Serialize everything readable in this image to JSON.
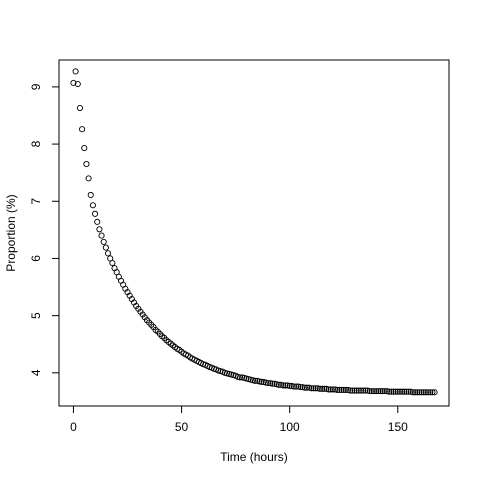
{
  "chart_data": {
    "type": "scatter",
    "x_label": "Time (hours)",
    "y_label": "Proportion (%)",
    "x": [
      0,
      1,
      2,
      3,
      4,
      5,
      6,
      7,
      8,
      9,
      10,
      11,
      12,
      13,
      14,
      15,
      16,
      17,
      18,
      19,
      20,
      21,
      22,
      23,
      24,
      25,
      26,
      27,
      28,
      29,
      30,
      31,
      32,
      33,
      34,
      35,
      36,
      37,
      38,
      39,
      40,
      41,
      42,
      43,
      44,
      45,
      46,
      47,
      48,
      49,
      50,
      51,
      52,
      53,
      54,
      55,
      56,
      57,
      58,
      59,
      60,
      61,
      62,
      63,
      64,
      65,
      66,
      67,
      68,
      69,
      70,
      71,
      72,
      73,
      74,
      75,
      76,
      77,
      78,
      79,
      80,
      81,
      82,
      83,
      84,
      85,
      86,
      87,
      88,
      89,
      90,
      91,
      92,
      93,
      94,
      95,
      96,
      97,
      98,
      99,
      100,
      101,
      102,
      103,
      104,
      105,
      106,
      107,
      108,
      109,
      110,
      111,
      112,
      113,
      114,
      115,
      116,
      117,
      118,
      119,
      120,
      121,
      122,
      123,
      124,
      125,
      126,
      127,
      128,
      129,
      130,
      131,
      132,
      133,
      134,
      135,
      136,
      137,
      138,
      139,
      140,
      141,
      142,
      143,
      144,
      145,
      146,
      147,
      148,
      149,
      150,
      151,
      152,
      153,
      154,
      155,
      156,
      157,
      158,
      159,
      160,
      161,
      162,
      163,
      164,
      165,
      166,
      167
    ],
    "values": [
      9.07,
      9.27,
      9.05,
      8.63,
      8.26,
      7.93,
      7.65,
      7.4,
      7.11,
      6.93,
      6.78,
      6.64,
      6.51,
      6.4,
      6.29,
      6.19,
      6.09,
      6.0,
      5.92,
      5.83,
      5.76,
      5.68,
      5.61,
      5.54,
      5.47,
      5.41,
      5.35,
      5.29,
      5.23,
      5.17,
      5.12,
      5.07,
      5.02,
      4.97,
      4.92,
      4.88,
      4.84,
      4.8,
      4.75,
      4.72,
      4.68,
      4.64,
      4.61,
      4.57,
      4.54,
      4.51,
      4.48,
      4.45,
      4.42,
      4.4,
      4.37,
      4.34,
      4.32,
      4.3,
      4.27,
      4.25,
      4.23,
      4.21,
      4.19,
      4.17,
      4.15,
      4.14,
      4.12,
      4.1,
      4.09,
      4.07,
      4.06,
      4.04,
      4.03,
      4.02,
      4.0,
      3.99,
      3.98,
      3.97,
      3.96,
      3.95,
      3.93,
      3.92,
      3.92,
      3.91,
      3.9,
      3.89,
      3.88,
      3.87,
      3.86,
      3.86,
      3.85,
      3.84,
      3.84,
      3.83,
      3.82,
      3.82,
      3.81,
      3.81,
      3.8,
      3.79,
      3.79,
      3.78,
      3.78,
      3.78,
      3.77,
      3.77,
      3.76,
      3.76,
      3.76,
      3.75,
      3.75,
      3.74,
      3.74,
      3.74,
      3.73,
      3.73,
      3.73,
      3.73,
      3.72,
      3.72,
      3.72,
      3.72,
      3.71,
      3.71,
      3.71,
      3.71,
      3.7,
      3.7,
      3.7,
      3.7,
      3.7,
      3.7,
      3.69,
      3.69,
      3.69,
      3.69,
      3.69,
      3.69,
      3.69,
      3.69,
      3.69,
      3.68,
      3.68,
      3.68,
      3.68,
      3.68,
      3.68,
      3.68,
      3.68,
      3.68,
      3.67,
      3.67,
      3.67,
      3.67,
      3.67,
      3.67,
      3.67,
      3.67,
      3.67,
      3.67,
      3.67,
      3.66,
      3.66,
      3.66,
      3.66,
      3.66,
      3.66,
      3.66,
      3.66,
      3.66,
      3.66,
      3.66
    ],
    "color": "#000000",
    "xlim": [
      -6.68,
      173.68
    ],
    "xticks": [
      0,
      50,
      100,
      150
    ],
    "ylim": [
      3.42,
      9.47
    ],
    "yticks": [
      4,
      5,
      6,
      7,
      8,
      9
    ]
  }
}
